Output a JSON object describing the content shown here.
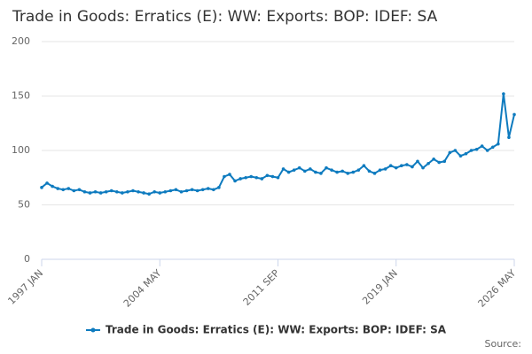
{
  "chart_data": {
    "type": "line",
    "title": "Trade in Goods: Erratics (E): WW: Exports: BOP: IDEF: SA",
    "source": "Source:",
    "categories": [
      "1997 JAN",
      null,
      null,
      null,
      null,
      null,
      null,
      null,
      null,
      null,
      null,
      null,
      null,
      null,
      null,
      null,
      null,
      null,
      null,
      null,
      null,
      null,
      "2004 MAY",
      null,
      null,
      null,
      null,
      null,
      null,
      null,
      null,
      null,
      null,
      null,
      null,
      null,
      null,
      null,
      null,
      null,
      null,
      null,
      null,
      null,
      "2011 SEP",
      null,
      null,
      null,
      null,
      null,
      null,
      null,
      null,
      null,
      null,
      null,
      null,
      null,
      null,
      null,
      null,
      null,
      null,
      null,
      null,
      null,
      "2019 JAN",
      null,
      null,
      null,
      null,
      null,
      null,
      null,
      null,
      null,
      null,
      null,
      null,
      null,
      null,
      null,
      null,
      null,
      null,
      null,
      null,
      null,
      "2026 MAY"
    ],
    "series": [
      {
        "name": "Trade in Goods: Erratics (E): WW: Exports: BOP: IDEF: SA",
        "color": "#0e7bbf",
        "values": [
          66,
          70,
          67,
          65,
          64,
          65,
          63,
          64,
          62,
          61,
          62,
          61,
          62,
          63,
          62,
          61,
          62,
          63,
          62,
          61,
          60,
          62,
          61,
          62,
          63,
          64,
          62,
          63,
          64,
          63,
          64,
          65,
          64,
          66,
          76,
          78,
          72,
          74,
          75,
          76,
          75,
          74,
          77,
          76,
          75,
          83,
          80,
          82,
          84,
          81,
          83,
          80,
          79,
          84,
          82,
          80,
          81,
          79,
          80,
          82,
          86,
          81,
          79,
          82,
          83,
          86,
          84,
          86,
          87,
          85,
          90,
          84,
          88,
          92,
          89,
          90,
          98,
          100,
          95,
          97,
          100,
          101,
          104,
          100,
          103,
          106,
          152,
          112,
          133
        ]
      }
    ],
    "ylim": [
      0,
      200
    ],
    "yticks": [
      0,
      50,
      100,
      150,
      200
    ],
    "grid": true,
    "legend": "bottom"
  }
}
